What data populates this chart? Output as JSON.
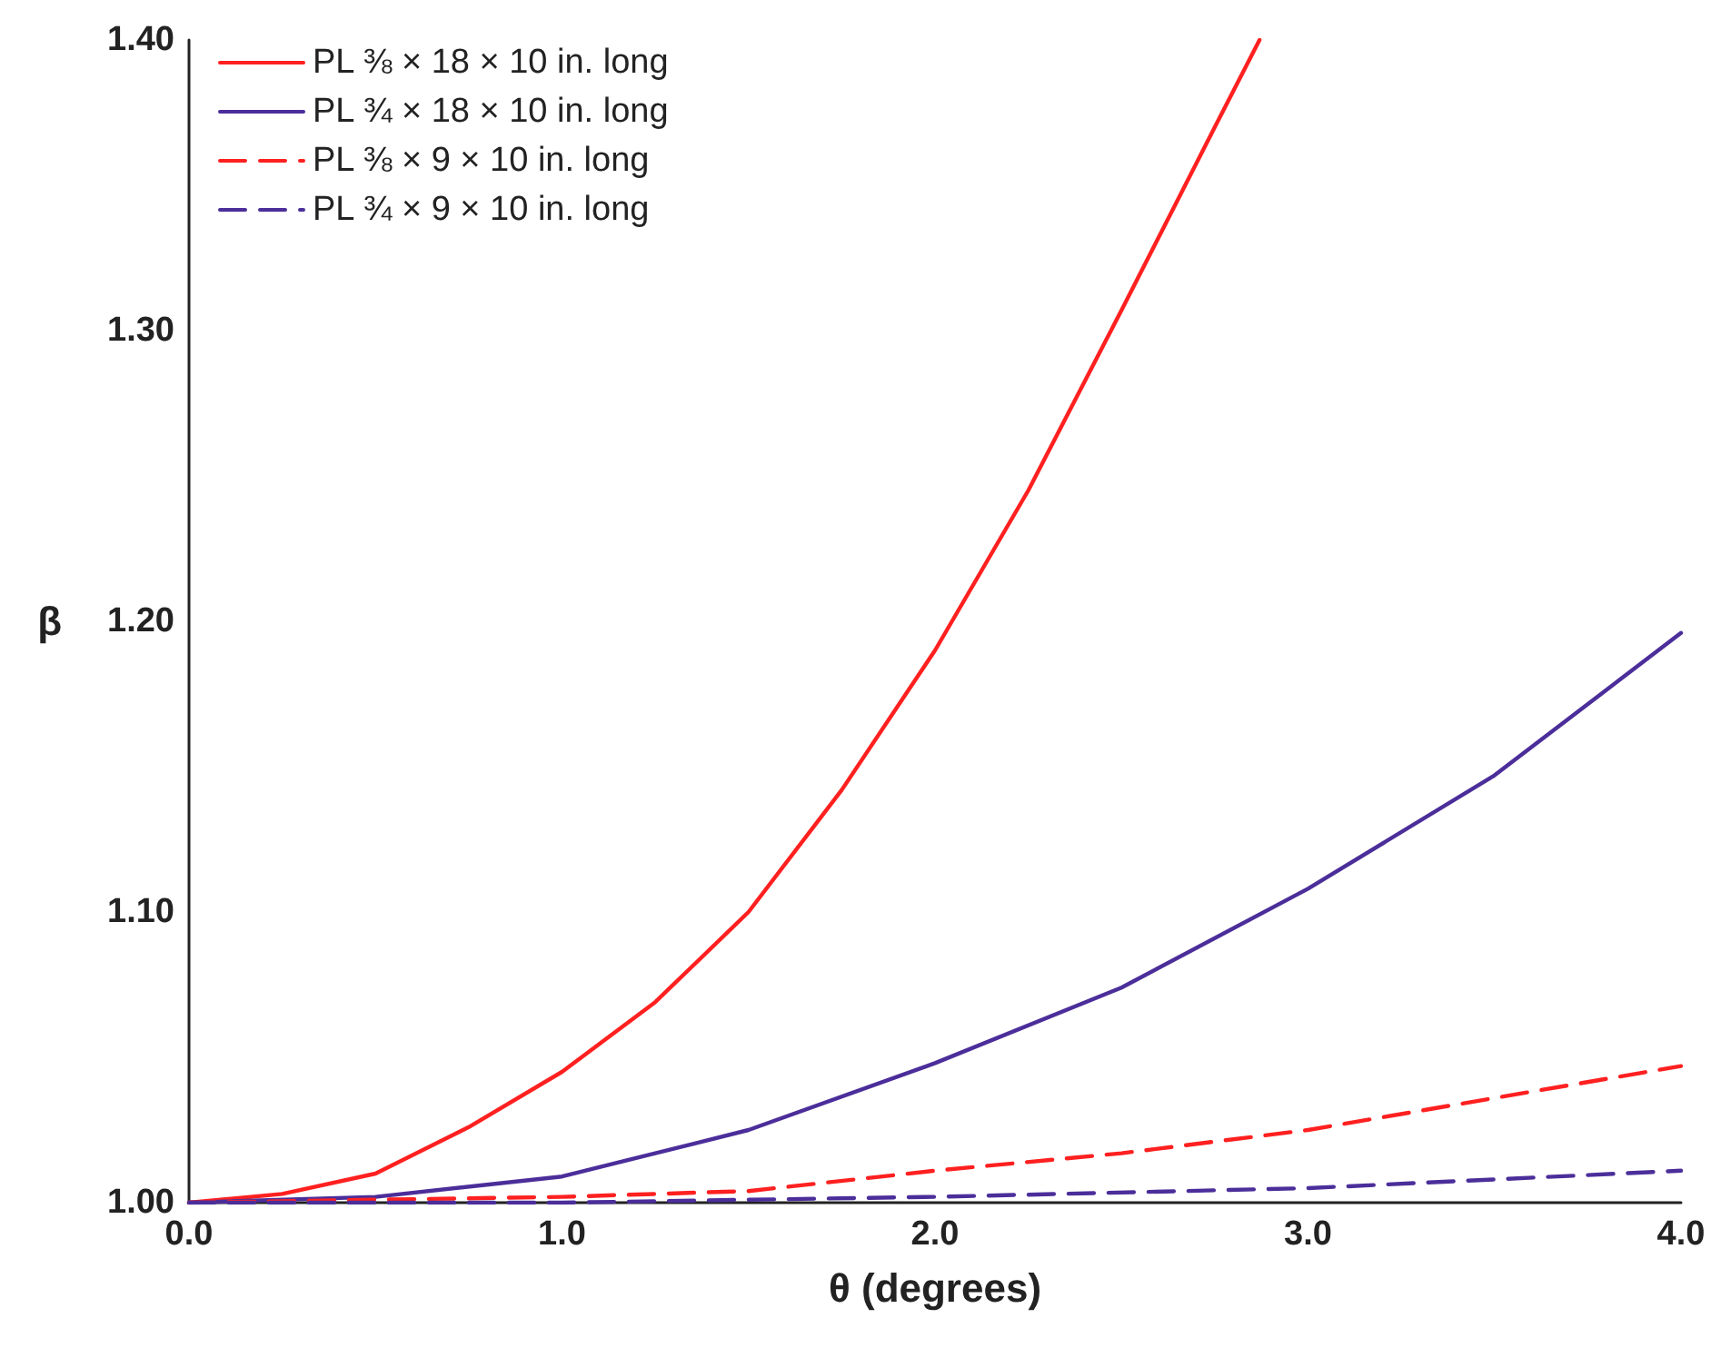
{
  "chart_data": {
    "type": "line",
    "xlabel": "θ (degrees)",
    "ylabel": "β",
    "xlim": [
      0,
      4
    ],
    "ylim": [
      1,
      1.4
    ],
    "xticks": [
      {
        "value": 0,
        "label": "0.0"
      },
      {
        "value": 1,
        "label": "1.0"
      },
      {
        "value": 2,
        "label": "2.0"
      },
      {
        "value": 3,
        "label": "3.0"
      },
      {
        "value": 4,
        "label": "4.0"
      }
    ],
    "yticks": [
      {
        "value": 1,
        "label": "1.00"
      },
      {
        "value": 1.1,
        "label": "1.10"
      },
      {
        "value": 1.2,
        "label": "1.20"
      },
      {
        "value": 1.3,
        "label": "1.30"
      },
      {
        "value": 1.4,
        "label": "1.40"
      }
    ],
    "legend": "top left",
    "marker": "none",
    "grid": false,
    "series": [
      {
        "name": "PL ⅜ × 18 × 10 in. long",
        "color": "#ff2020",
        "line_style": "solid",
        "x": [
          0,
          0.25,
          0.5,
          0.75,
          1,
          1.25,
          1.5,
          1.75,
          2,
          2.25,
          2.5,
          2.75,
          2.87
        ],
        "values": [
          1,
          1.003,
          1.01,
          1.026,
          1.045,
          1.069,
          1.1,
          1.142,
          1.19,
          1.245,
          1.307,
          1.37,
          1.4
        ]
      },
      {
        "name": "PL ¾ × 18 × 10 in. long",
        "color": "#4b2e9a",
        "line_style": "solid",
        "x": [
          0,
          0.5,
          1,
          1.5,
          2,
          2.5,
          3,
          3.5,
          4
        ],
        "values": [
          1,
          1.002,
          1.009,
          1.025,
          1.048,
          1.074,
          1.108,
          1.147,
          1.196
        ]
      },
      {
        "name": "PL ⅜ × 9 × 10 in. long",
        "color": "#ff2020",
        "line_style": "dashed",
        "x": [
          0,
          1,
          1.5,
          2,
          2.5,
          3,
          3.5,
          4
        ],
        "values": [
          1,
          1.002,
          1.004,
          1.011,
          1.017,
          1.025,
          1.036,
          1.047
        ]
      },
      {
        "name": "PL ¾ × 9 × 10 in. long",
        "color": "#4b2e9a",
        "line_style": "dashed",
        "x": [
          0,
          1,
          2,
          3,
          4
        ],
        "values": [
          1,
          1.0,
          1.002,
          1.005,
          1.011
        ]
      }
    ]
  }
}
